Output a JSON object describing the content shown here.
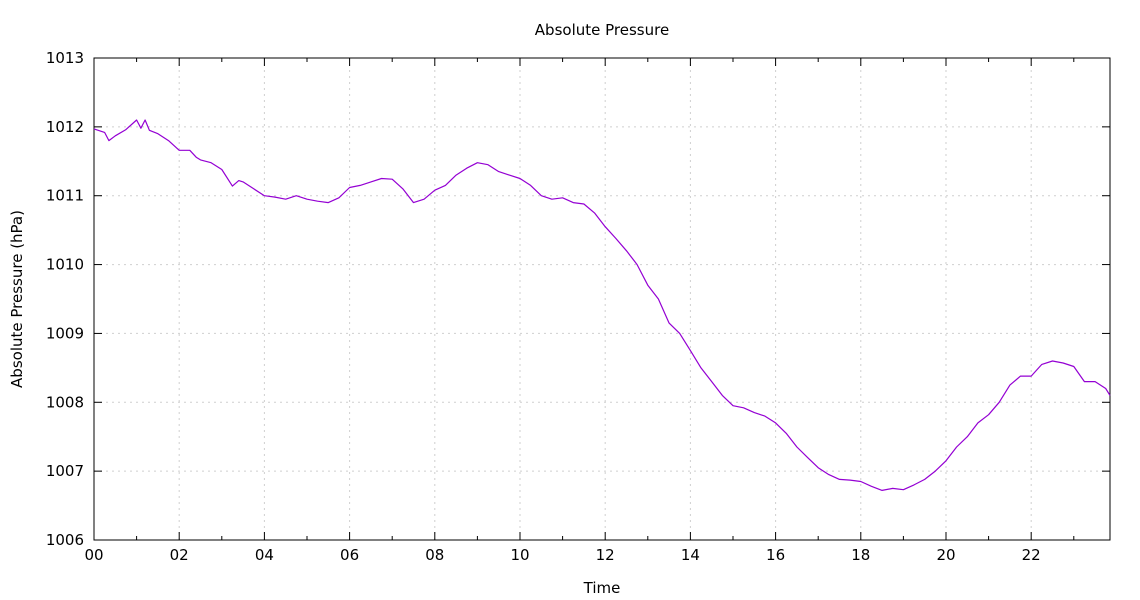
{
  "chart_data": {
    "type": "line",
    "title": "Absolute Pressure",
    "xlabel": "Time",
    "ylabel": "Absolute Pressure (hPa)",
    "xlim": [
      0,
      23.85
    ],
    "ylim": [
      1006,
      1013
    ],
    "x_ticks": [
      0,
      2,
      4,
      6,
      8,
      10,
      12,
      14,
      16,
      18,
      20,
      22
    ],
    "x_tick_labels": [
      "00",
      "02",
      "04",
      "06",
      "08",
      "10",
      "12",
      "14",
      "16",
      "18",
      "20",
      "22"
    ],
    "y_ticks": [
      1006,
      1007,
      1008,
      1009,
      1010,
      1011,
      1012,
      1013
    ],
    "y_tick_labels": [
      "1006",
      "1007",
      "1008",
      "1009",
      "1010",
      "1011",
      "1012",
      "1013"
    ],
    "grid": true,
    "legend": "none",
    "colors": {
      "line": "#9400d3",
      "grid": "#cfcfcf",
      "axis": "#000000"
    },
    "series": [
      {
        "x": [
          0.0,
          0.25,
          0.35,
          0.5,
          0.75,
          1.0,
          1.1,
          1.2,
          1.3,
          1.5,
          1.75,
          2.0,
          2.25,
          2.4,
          2.5,
          2.75,
          3.0,
          3.25,
          3.4,
          3.5,
          3.75,
          4.0,
          4.25,
          4.5,
          4.75,
          5.0,
          5.25,
          5.5,
          5.75,
          6.0,
          6.25,
          6.5,
          6.75,
          7.0,
          7.25,
          7.5,
          7.75,
          8.0,
          8.25,
          8.5,
          8.75,
          9.0,
          9.25,
          9.5,
          9.75,
          10.0,
          10.25,
          10.5,
          10.75,
          11.0,
          11.25,
          11.5,
          11.75,
          12.0,
          12.25,
          12.5,
          12.75,
          13.0,
          13.25,
          13.5,
          13.75,
          14.0,
          14.25,
          14.5,
          14.75,
          15.0,
          15.25,
          15.5,
          15.75,
          16.0,
          16.25,
          16.5,
          16.75,
          17.0,
          17.25,
          17.5,
          17.75,
          18.0,
          18.25,
          18.5,
          18.75,
          19.0,
          19.25,
          19.5,
          19.75,
          20.0,
          20.25,
          20.5,
          20.75,
          21.0,
          21.25,
          21.5,
          21.75,
          22.0,
          22.25,
          22.5,
          22.75,
          23.0,
          23.25,
          23.5,
          23.75,
          23.85
        ],
        "y": [
          1011.97,
          1011.92,
          1011.8,
          1011.87,
          1011.96,
          1012.1,
          1011.98,
          1012.1,
          1011.95,
          1011.9,
          1011.8,
          1011.66,
          1011.66,
          1011.56,
          1011.52,
          1011.48,
          1011.38,
          1011.14,
          1011.22,
          1011.2,
          1011.1,
          1011.0,
          1010.98,
          1010.95,
          1011.0,
          1010.95,
          1010.92,
          1010.9,
          1010.97,
          1011.12,
          1011.15,
          1011.2,
          1011.25,
          1011.24,
          1011.1,
          1010.9,
          1010.95,
          1011.08,
          1011.15,
          1011.3,
          1011.4,
          1011.48,
          1011.45,
          1011.35,
          1011.3,
          1011.25,
          1011.15,
          1011.0,
          1010.95,
          1010.97,
          1010.9,
          1010.88,
          1010.75,
          1010.55,
          1010.38,
          1010.2,
          1010.0,
          1009.7,
          1009.5,
          1009.15,
          1009.0,
          1008.75,
          1008.5,
          1008.3,
          1008.1,
          1007.95,
          1007.92,
          1007.85,
          1007.8,
          1007.7,
          1007.55,
          1007.35,
          1007.2,
          1007.05,
          1006.95,
          1006.88,
          1006.87,
          1006.85,
          1006.78,
          1006.72,
          1006.75,
          1006.73,
          1006.8,
          1006.88,
          1007.0,
          1007.15,
          1007.35,
          1007.5,
          1007.7,
          1007.82,
          1008.0,
          1008.25,
          1008.38,
          1008.38,
          1008.55,
          1008.6,
          1008.57,
          1008.52,
          1008.3,
          1008.3,
          1008.2,
          1008.1
        ]
      }
    ]
  }
}
